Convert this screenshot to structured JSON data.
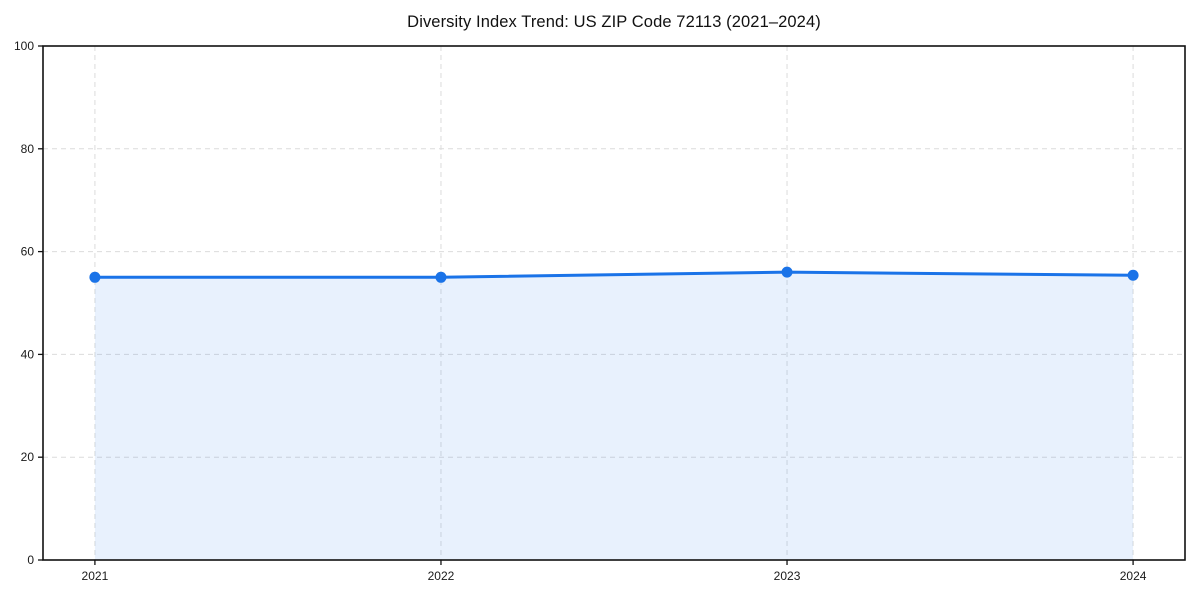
{
  "page": {
    "background": "#ffffff"
  },
  "chart_data": {
    "type": "area",
    "title": "Diversity Index Trend: US ZIP Code 72113 (2021–2024)",
    "x": [
      2021,
      2022,
      2023,
      2024
    ],
    "categories": [
      "2021",
      "2022",
      "2023",
      "2024"
    ],
    "series": [
      {
        "name": "Diversity Index",
        "values": [
          55,
          55,
          56,
          55.4
        ]
      }
    ],
    "xlabel": "",
    "ylabel": "",
    "ylim": [
      0,
      100
    ],
    "yticks": [
      0,
      20,
      40,
      60,
      80,
      100
    ],
    "xticks": [
      "2021",
      "2022",
      "2023",
      "2024"
    ],
    "x_margin_frac": 0.05,
    "grid": {
      "show": true,
      "style": "dashed",
      "color": "#dcdcdc"
    },
    "legend": {
      "show": false
    },
    "colors": {
      "line": "#1a73e8",
      "marker": "#1a73e8",
      "fill": "rgba(26,115,232,0.10)",
      "spine": "#111111",
      "tick": "#111111",
      "tick_label": "#1a1a1a",
      "title": "#111111"
    }
  }
}
